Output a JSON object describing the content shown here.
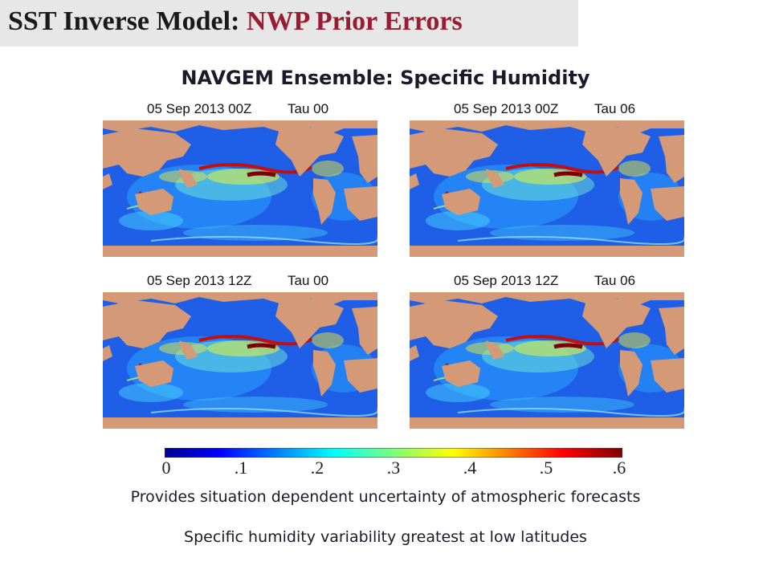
{
  "slide": {
    "title_main": "SST Inverse Model:",
    "title_accent": "NWP Prior Errors",
    "subtitle": "NAVGEM Ensemble: Specific Humidity"
  },
  "panels": [
    {
      "date": "05 Sep 2013 00Z",
      "tau": "Tau 00"
    },
    {
      "date": "05 Sep 2013 00Z",
      "tau": "Tau 06"
    },
    {
      "date": "05 Sep 2013 12Z",
      "tau": "Tau 00"
    },
    {
      "date": "05 Sep 2013 12Z",
      "tau": "Tau 06"
    }
  ],
  "colorbar": {
    "ticks": [
      "0",
      ".1",
      ".2",
      ".3",
      ".4",
      ".5",
      ".6"
    ],
    "range": [
      0,
      0.6
    ]
  },
  "notes": {
    "line1": "Provides situation dependent uncertainty of atmospheric forecasts",
    "line2": "Specific humidity variability greatest at low latitudes"
  },
  "colors": {
    "title_accent": "#9b1b30",
    "land": "#d49a78",
    "ocean_low": "#0a2fd6",
    "ocean_high": "#a01010"
  }
}
